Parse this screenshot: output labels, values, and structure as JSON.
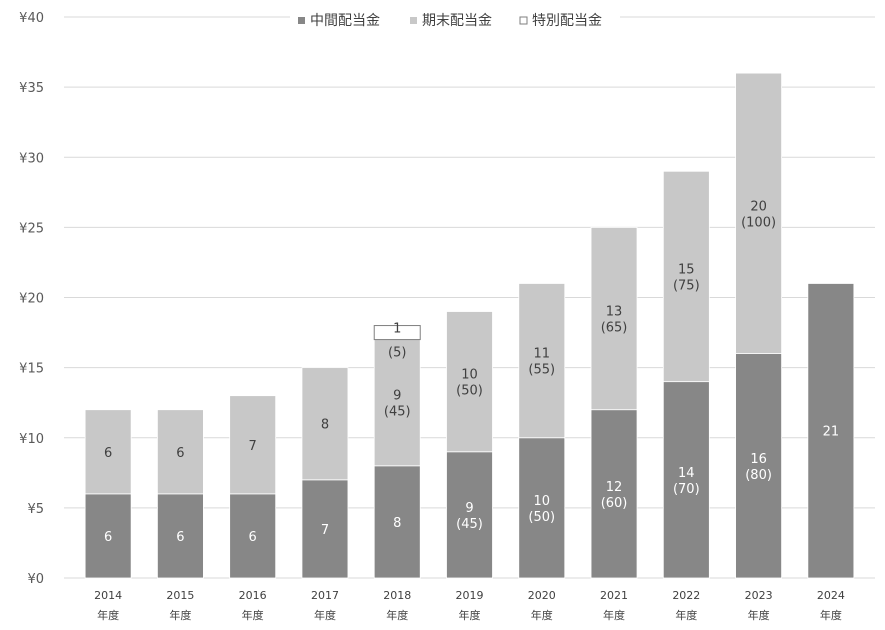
{
  "chart_data": {
    "type": "bar",
    "stacked": true,
    "categories": [
      [
        "2014",
        "年度"
      ],
      [
        "2015",
        "年度"
      ],
      [
        "2016",
        "年度"
      ],
      [
        "2017",
        "年度"
      ],
      [
        "2018",
        "年度"
      ],
      [
        "2019",
        "年度"
      ],
      [
        "2020",
        "年度"
      ],
      [
        "2021",
        "年度"
      ],
      [
        "2022",
        "年度"
      ],
      [
        "2023",
        "年度"
      ],
      [
        "2024",
        "年度"
      ]
    ],
    "series": [
      {
        "name": "中間配当金",
        "color": "#878787",
        "values": [
          6,
          6,
          6,
          7,
          8,
          9,
          10,
          12,
          14,
          16,
          21
        ],
        "labels": [
          [
            "6"
          ],
          [
            "6"
          ],
          [
            "6"
          ],
          [
            "7"
          ],
          [
            "8"
          ],
          [
            "9",
            "(45)"
          ],
          [
            "10",
            "(50)"
          ],
          [
            "12",
            "(60)"
          ],
          [
            "14",
            "(70)"
          ],
          [
            "16",
            "(80)"
          ],
          [
            "21"
          ]
        ]
      },
      {
        "name": "期末配当金",
        "color": "#c8c8c8",
        "values": [
          6,
          6,
          7,
          8,
          9,
          10,
          11,
          13,
          15,
          20,
          0
        ],
        "labels": [
          [
            "6"
          ],
          [
            "6"
          ],
          [
            "7"
          ],
          [
            "8"
          ],
          [
            "9",
            "(45)"
          ],
          [
            "10",
            "(50)"
          ],
          [
            "11",
            "(55)"
          ],
          [
            "13",
            "(65)"
          ],
          [
            "15",
            "(75)"
          ],
          [
            "20",
            "(100)"
          ],
          []
        ]
      },
      {
        "name": "特別配当金",
        "color": "#ffffff",
        "values": [
          0,
          0,
          0,
          0,
          1,
          0,
          0,
          0,
          0,
          0,
          0
        ],
        "labels": [
          [],
          [],
          [],
          [],
          [
            "1",
            "(5)"
          ],
          [],
          [],
          [],
          [],
          [],
          []
        ]
      }
    ],
    "ylim": [
      0,
      40
    ],
    "yticks": [
      "¥0",
      "¥5",
      "¥10",
      "¥15",
      "¥20",
      "¥25",
      "¥30",
      "¥35",
      "¥40"
    ],
    "ytick_values": [
      0,
      5,
      10,
      15,
      20,
      25,
      30,
      35,
      40
    ],
    "grid": true,
    "legend": "top-center",
    "title": "",
    "xlabel": "",
    "ylabel": ""
  }
}
